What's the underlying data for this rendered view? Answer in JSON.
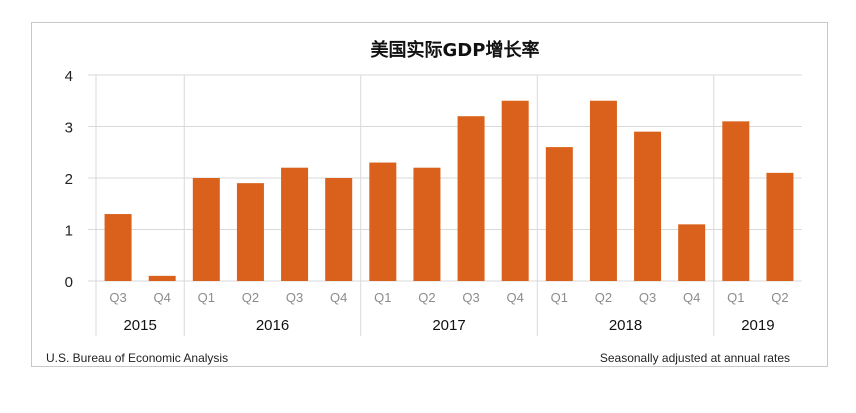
{
  "colors": {
    "bar": "#DA611C",
    "grid": "#d9d9d9",
    "tick": "#8c8c8c",
    "year": "#111111"
  },
  "footer": {
    "source": "U.S. Bureau of Economic Analysis",
    "note": "Seasonally adjusted at annual rates"
  },
  "chart_data": {
    "type": "bar",
    "title": "美国实际GDP增长率",
    "xlabel": "",
    "ylabel": "",
    "ylim": [
      0,
      4
    ],
    "yticks": [
      "0",
      "1",
      "2",
      "3",
      "4"
    ],
    "grid": true,
    "legend": "none",
    "categories": [
      "Q3",
      "Q4",
      "Q1",
      "Q2",
      "Q3",
      "Q4",
      "Q1",
      "Q2",
      "Q3",
      "Q4",
      "Q1",
      "Q2",
      "Q3",
      "Q4",
      "Q1",
      "Q2"
    ],
    "years": [
      {
        "label": "2015",
        "span": 2
      },
      {
        "label": "2016",
        "span": 4
      },
      {
        "label": "2017",
        "span": 4
      },
      {
        "label": "2018",
        "span": 4
      },
      {
        "label": "2019",
        "span": 2
      }
    ],
    "values": [
      1.3,
      0.1,
      2.0,
      1.9,
      2.2,
      2.0,
      2.3,
      2.2,
      3.2,
      3.5,
      2.6,
      3.5,
      2.9,
      1.1,
      3.1,
      2.1
    ]
  }
}
